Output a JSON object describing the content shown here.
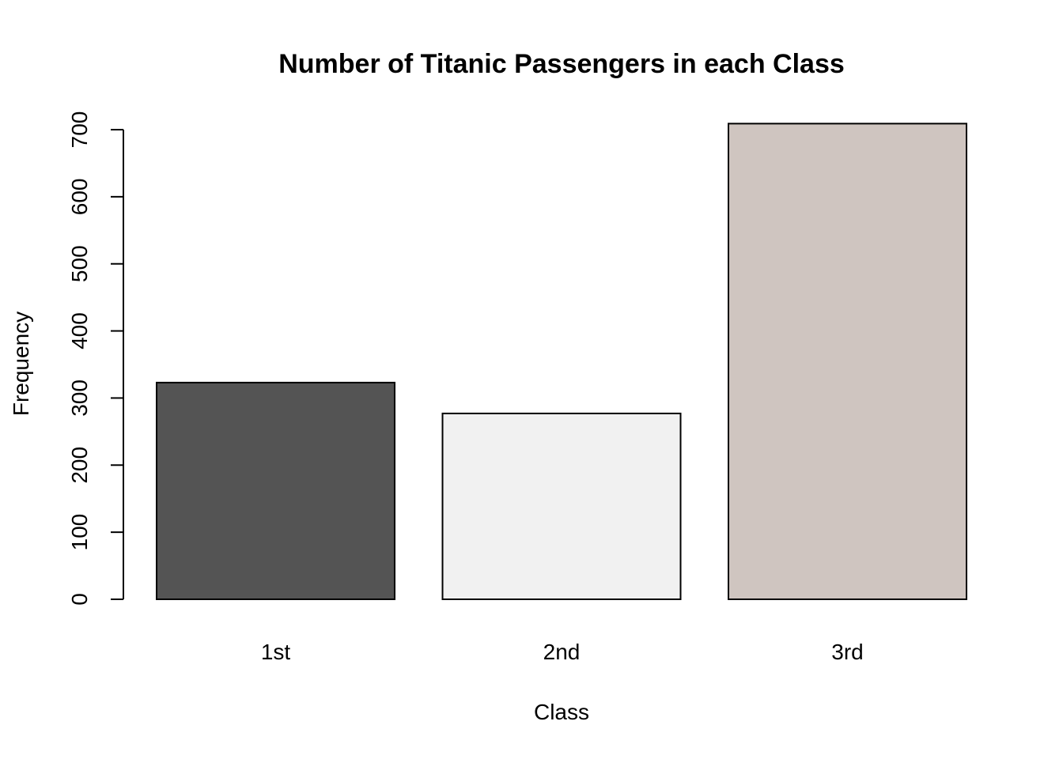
{
  "chart_data": {
    "type": "bar",
    "title": "Number of Titanic Passengers in each Class",
    "xlabel": "Class",
    "ylabel": "Frequency",
    "categories": [
      "1st",
      "2nd",
      "3rd"
    ],
    "values": [
      323,
      277,
      709
    ],
    "colors": [
      "#545454",
      "#f1f1f1",
      "#cfc5c0"
    ],
    "bar_border_color": "#000000",
    "ylim": [
      0,
      700
    ],
    "yticks": [
      0,
      100,
      200,
      300,
      400,
      500,
      600,
      700
    ],
    "ytick_labels": [
      "0",
      "100",
      "200",
      "300",
      "400",
      "500",
      "600",
      "700"
    ],
    "grid": false,
    "legend": "none"
  }
}
